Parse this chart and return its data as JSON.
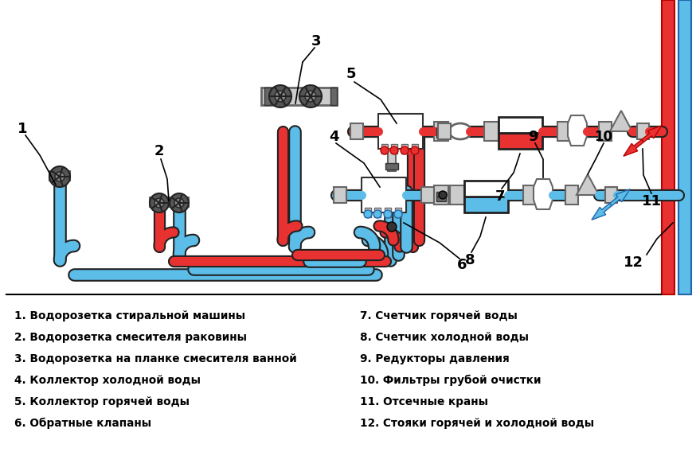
{
  "bg_color": "#ffffff",
  "blue": "#5bbde8",
  "red": "#e83232",
  "dark_blue": "#2266aa",
  "dark_red": "#bb0000",
  "white": "#ffffff",
  "gray": "#aaaaaa",
  "dgray": "#666666",
  "lgray": "#cccccc",
  "legend_left": [
    "1. Водорозетка стиральной машины",
    "2. Водорозетка смесителя раковины",
    "3. Водорозетка на планке смесителя ванной",
    "4. Коллектор холодной воды",
    "5. Коллектор горячей воды",
    "6. Обратные клапаны"
  ],
  "legend_right": [
    "7. Счетчик горячей воды",
    "8. Счетчик холодной воды",
    "9. Редукторы давления",
    "10. Фильтры грубой очистки",
    "11. Отсечные краны",
    "12. Стояки горячей и холодной воды"
  ]
}
